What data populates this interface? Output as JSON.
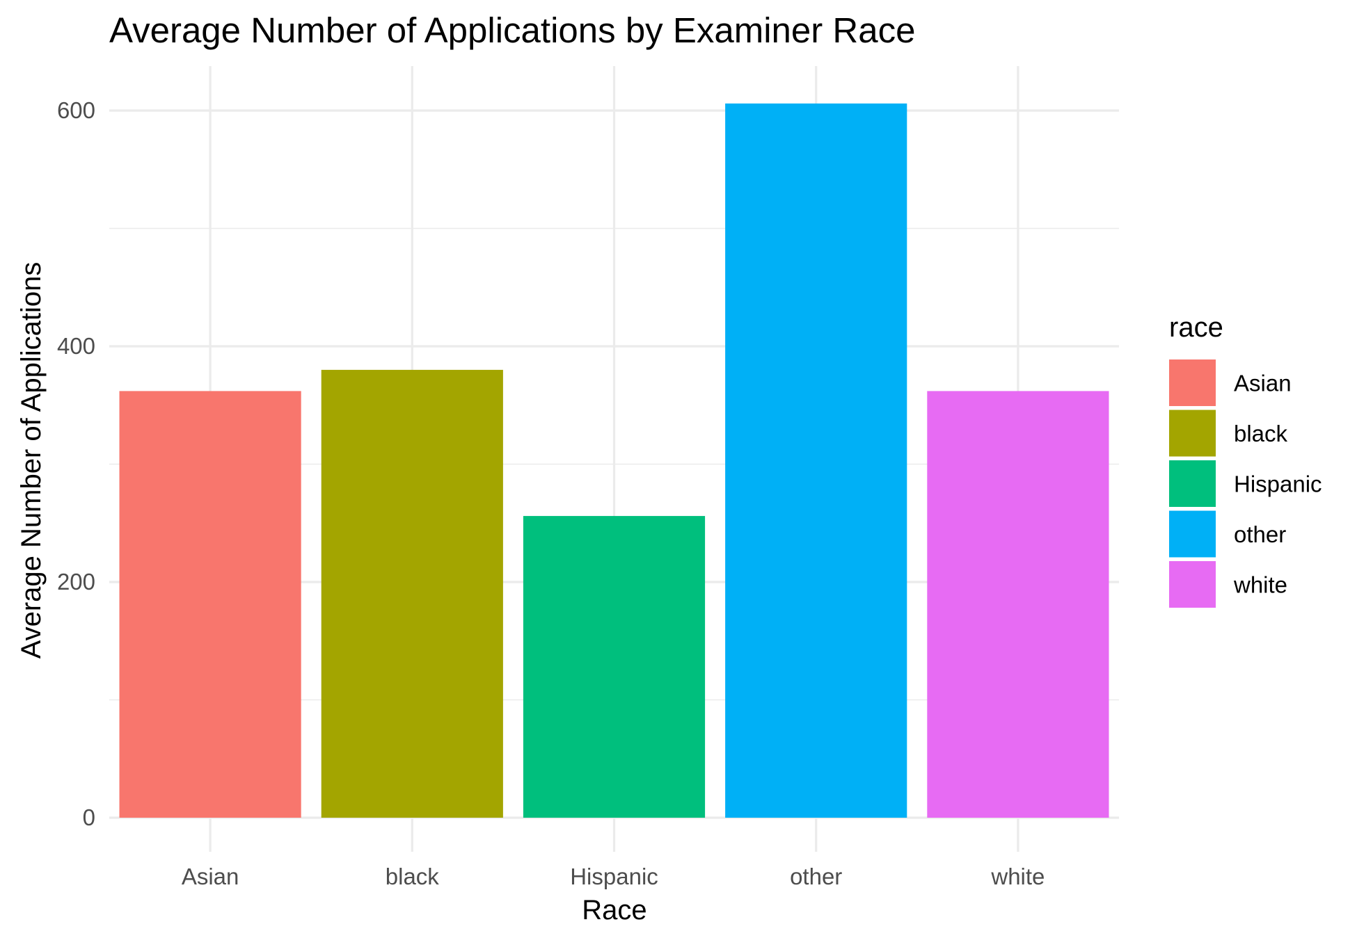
{
  "chart_data": {
    "type": "bar",
    "title": "Average Number of Applications by Examiner Race",
    "xlabel": "Race",
    "ylabel": "Average Number of Applications",
    "categories": [
      "Asian",
      "black",
      "Hispanic",
      "other",
      "white"
    ],
    "values": [
      362,
      380,
      256,
      606,
      362
    ],
    "colors": [
      "#F8766D",
      "#A3A500",
      "#00BF7D",
      "#00B0F6",
      "#E76BF3"
    ],
    "ylim": [
      0,
      640
    ],
    "yticks": [
      0,
      200,
      400,
      600
    ],
    "ytick_labels": [
      "0",
      "200",
      "400",
      "600"
    ],
    "grid": true,
    "legend": {
      "title": "race",
      "placement": "right",
      "entries": [
        "Asian",
        "black",
        "Hispanic",
        "other",
        "white"
      ]
    }
  }
}
